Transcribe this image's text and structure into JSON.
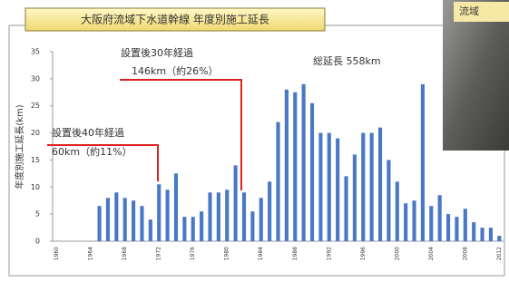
{
  "chart_data": {
    "type": "bar",
    "title": "大阪府流域下水道幹線 年度別施工延長",
    "y_label": "年度別施工延長(km)",
    "photo_text": "流域",
    "annotations": [
      "設置後30年経過",
      "146km（約26%）",
      "設置後40年経過",
      "60km（約11%）",
      "総延長 558km"
    ],
    "categories": [
      "1960",
      null,
      null,
      null,
      "1964",
      null,
      null,
      null,
      "1968",
      null,
      null,
      null,
      "1972",
      null,
      null,
      null,
      "1976",
      null,
      null,
      null,
      "1980",
      null,
      null,
      null,
      "1984",
      null,
      null,
      null,
      "1988",
      null,
      null,
      null,
      "1992",
      null,
      null,
      null,
      "1996",
      null,
      null,
      null,
      "2000",
      null,
      null,
      null,
      "2004",
      null,
      null,
      null,
      "2008",
      null,
      null,
      null,
      "2012"
    ],
    "values": [
      null,
      null,
      null,
      null,
      null,
      6.5,
      8,
      9,
      8,
      7.5,
      6.5,
      4,
      10.5,
      9.5,
      12.5,
      4.5,
      4.5,
      5.5,
      9,
      9,
      9.5,
      14,
      9,
      5.5,
      8,
      11,
      22,
      28,
      27.5,
      29,
      25.5,
      20,
      20,
      19,
      12,
      16,
      20,
      20,
      21,
      15,
      11,
      7,
      7.5,
      29,
      6.5,
      8.5,
      5,
      4.5,
      6,
      3.5,
      2.5,
      2.5,
      1
    ],
    "color": "#4a78c4",
    "ylim": [
      0,
      35
    ],
    "yticks": [
      0,
      5,
      10,
      15,
      20,
      25,
      30,
      35
    ],
    "grid": false
  }
}
